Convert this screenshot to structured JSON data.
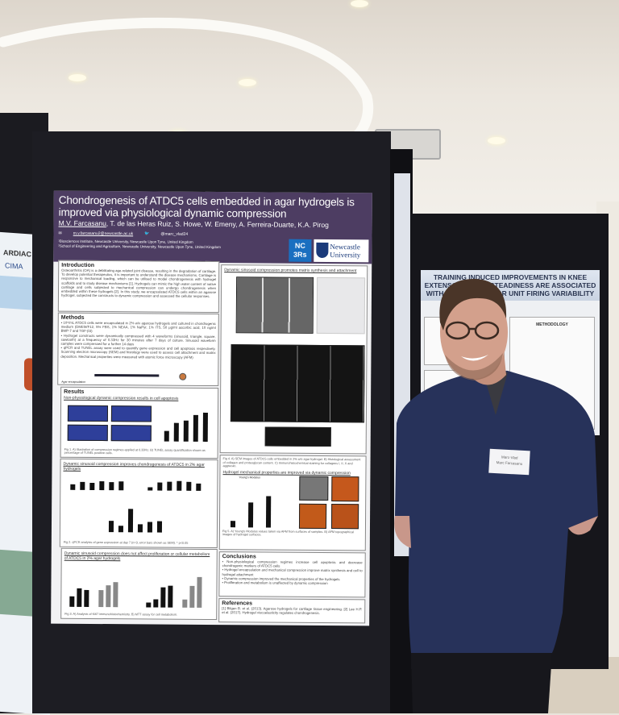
{
  "scene": {
    "description_colors": {
      "poster_header": "#4d3d62",
      "shirt": "#27325a",
      "board": "#1d1d23"
    }
  },
  "main_poster": {
    "title": "Chondrogenesis of ATDC5 cells embedded in agar hydrogels is improved via physiological dynamic compression",
    "presenting_author": "M.V. Farcasanu",
    "other_authors": ", T. de las Heras Ruiz, S. Howe, W. Emeny, A. Ferreira-Duarte, K.A. Pirog",
    "email": "m.v.farcasanu2@newcastle.ac.uk",
    "twitter": "@marc_vlad24",
    "affiliations": [
      "¹Biosciences Institute, Newcastle University, Newcastle Upon Tyne, United Kingdom",
      "²School of Engineering and Agriculture, Newcastle University, Newcastle Upon Tyne, United Kingdom"
    ],
    "logos": {
      "nc3rs": "NC 3Rs",
      "university_line1": "Newcastle",
      "university_line2": "University"
    },
    "introduction": {
      "heading": "Introduction",
      "text": "Osteoarthritis (OA) is a debilitating age-related joint disease, resulting in the degradation of cartilage. To develop potential therapeutics, it is important to understand the disease mechanisms. Cartilage is responsive to mechanical loading, which can be utilised to model chondrogenesis with hydrogel scaffolds and to study disease mechanisms [1]. Hydrogels can mimic the high water content of native cartilage and cells subjected to mechanical compression can undergo chondrogenesis when embedded within these hydrogels [2]. In this study, we encapsulated ATDC5 cells within an agarose hydrogel, subjected the constructs to dynamic compression and assessed the cellular responses."
    },
    "methods": {
      "heading": "Methods",
      "bullets": [
        "10⁶/mL ATDC5 cells were encapsulated in 2% w/v agarose hydrogels and cultured in chondrogenic medium (DMEM/F12, 5% FBS, 1% NEAA, 1% NaPyr, 1% ITS, 50 µg/ml ascorbic acid, 10 ng/ml BMP-7 and TGF-β3)",
        "Hydrogel constructs were dynamically compressed with 4 waveforms (sinusoid, triangle, square, sawtooth) at a frequency of 0.33Hz for 30 minutes after 7 days of culture. Sinusoid waveform samples were compressed for a further 14 days",
        "qPCR and TUNEL assay were used to quantify gene expression and cell apoptosis respectively. Scanning electron microscopy (SEM) and histology were used to assess cell attachment and matrix deposition. Mechanical properties were measured with atomic force microscopy (AFM)"
      ],
      "timeline_label": "Agar encapsulation"
    },
    "results": {
      "heading": "Results",
      "sub1": "Non-physiological dynamic compression results in cell apoptosis",
      "fig1_bars": [
        30,
        55,
        62,
        78,
        85
      ],
      "fig1_caption": "Fig 1. A) Illustration of compression regimes applied at 0.33Hz. B) TUNEL assay quantification shown as percentage of TUNEL positive cells.",
      "sub2": "Dynamic sinusoid compression improves chondrogenesis of ATDC5 in 2% agar hydrogels",
      "fig2a_bars": [
        30,
        45,
        40,
        48,
        45,
        50
      ],
      "fig2b_bars": [
        20,
        45,
        50,
        55,
        48,
        40
      ],
      "fig2c_bars": [
        40,
        25,
        85,
        30,
        38,
        42
      ],
      "fig2_caption": "Fig 2. qPCR analysis of gene expression at day 7 (n=3, error bars shown as SEM). * p<0.05",
      "sub3": "Dynamic sinusoid compression does not affect proliferation or cellular metabolism of ATDC5 in 2% agar hydrogels",
      "fig3a_bars": [
        30,
        55,
        50,
        0,
        50,
        65,
        75
      ],
      "fig3b_bars": [
        15,
        25,
        60,
        65,
        0,
        25,
        65,
        90
      ],
      "fig3_caption": "Fig 3. A) Analysis of Ki67 immunohistochemistry. B) MTT assay for cell metabolism."
    },
    "right_column": {
      "sub1": "Dynamic sinusoid compression promotes matrix synthesis and attachment",
      "fig4_caption": "Fig 4. A) SEM images of ATDC5 cells embedded in 2% w/v agar hydrogel. B) Histological assessment of collagen and proteoglycan content. C) Immunohistochemical staining for collagens I, II, X and aggrecan.",
      "sub2": "Hydrogel mechanical properties are improved via dynamic compression",
      "fig5_bars": [
        15,
        60,
        75
      ],
      "fig5_title": "Young's Modulus",
      "fig5_caption": "Fig 5. A) Young's Modulus values taken via AFM from surfaces of samples. B) AFM topographical images of hydrogel surfaces.",
      "conclusions": {
        "heading": "Conclusions",
        "bullets": [
          "Non-physiological compression regimes increase cell apoptosis and decrease chondrogenic markers of ATDC5 cells",
          "Hydrogel encapsulation and mechanical compression improve matrix synthesis and cell to hydrogel attachment",
          "Dynamic compression improved the mechanical properties of the hydrogels",
          "Proliferation and metabolism is unaffected by dynamic compression"
        ]
      },
      "references": {
        "heading": "References",
        "text": "[1] Bilgen B. et al. (2013). Agarose hydrogels for cartilage tissue engineering. [2] Lee H.P. et al. (2017). Hydrogel viscoelasticity regulates chondrogenesis."
      }
    }
  },
  "right_poster": {
    "title": "TRAINING INDUCED IMPROVEMENTS IN KNEE EXTENSOR FORCE STEADINESS ARE ASSOCIATED WITH REDUCED MOTOR UNIT FIRING VARIABILITY",
    "section": "METHODOLOGY"
  },
  "left_poster": {
    "title_fragment": "ARDIAC",
    "logo": "CIMA"
  },
  "name_badge": {
    "line1": "Marc-Vlad",
    "line2": "Marc Farcasanu"
  }
}
